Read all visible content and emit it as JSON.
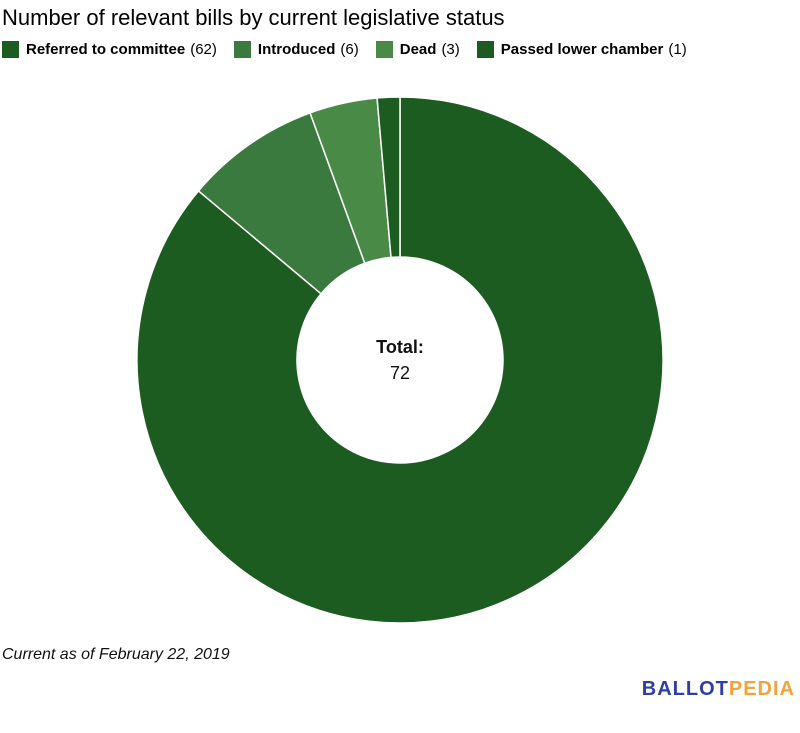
{
  "title": "Number of relevant bills by current legislative status",
  "legend": {
    "items": [
      {
        "label": "Referred to committee",
        "count_label": "(62)",
        "color": "#1d5c21"
      },
      {
        "label": "Introduced",
        "count_label": "(6)",
        "color": "#3a7a3e"
      },
      {
        "label": "Dead",
        "count_label": "(3)",
        "color": "#4a8a47"
      },
      {
        "label": "Passed lower chamber",
        "count_label": "(1)",
        "color": "#1d5c21"
      }
    ]
  },
  "donut": {
    "center_label": "Total:",
    "center_value": "72"
  },
  "chart_data": {
    "type": "pie",
    "subtype": "donut",
    "title": "Number of relevant bills by current legislative status",
    "categories": [
      "Referred to committee",
      "Introduced",
      "Dead",
      "Passed lower chamber"
    ],
    "values": [
      62,
      6,
      3,
      1
    ],
    "total": 72,
    "colors": [
      "#1d5c21",
      "#3a7a3e",
      "#4a8a47",
      "#1d5c21"
    ],
    "center_label": "Total:",
    "center_value": 72,
    "legend_position": "top",
    "start_angle_deg": 0,
    "direction": "clockwise",
    "inner_radius_ratio": 0.39,
    "slice_border_color": "#ffffff"
  },
  "footer": {
    "note": "Current as of February 22, 2019"
  },
  "logo": {
    "part1": "BALLOT",
    "part2": "PEDIA",
    "part1_color": "#2e3ea3",
    "part2_color": "#f2a33c"
  }
}
